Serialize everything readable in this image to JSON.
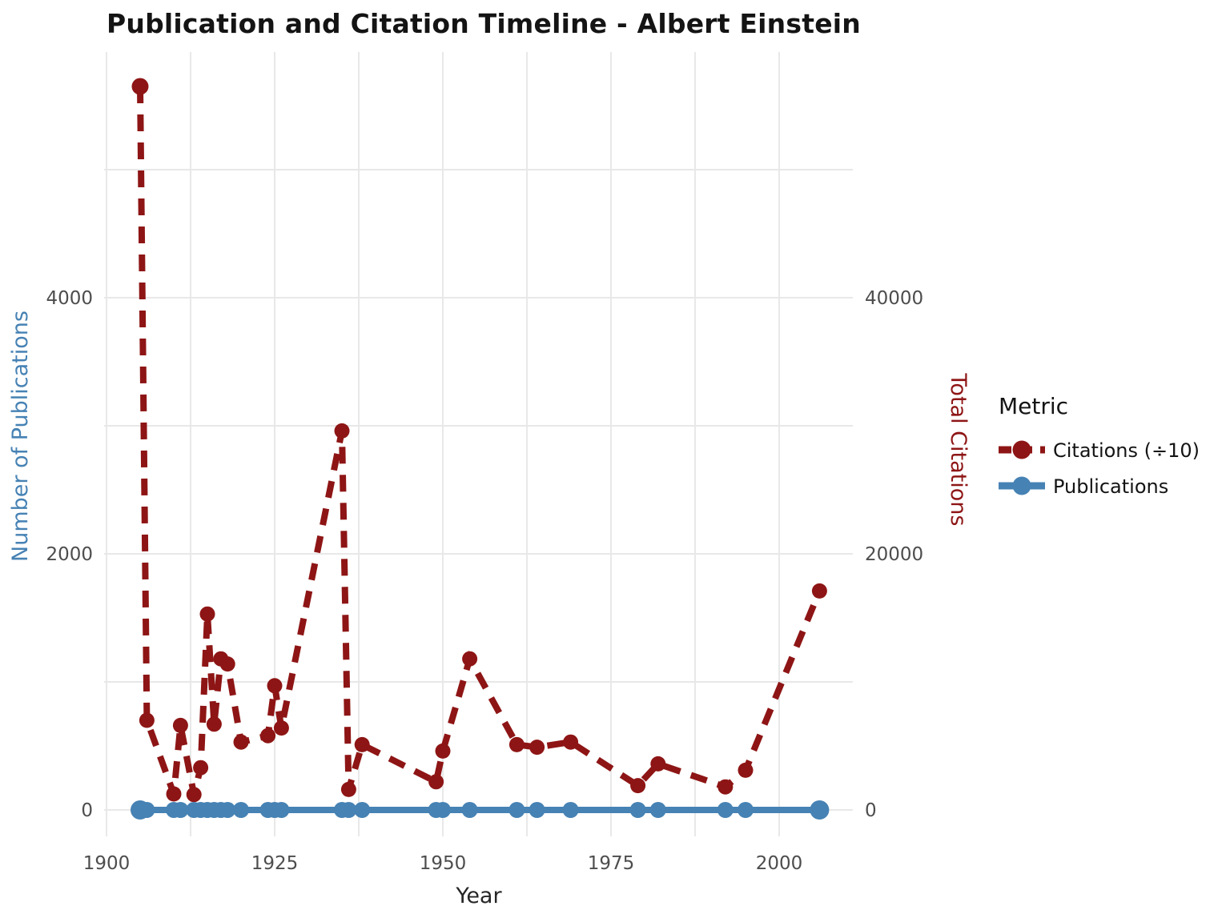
{
  "chart_data": {
    "type": "line",
    "title": "Publication and Citation Timeline - Albert Einstein",
    "xlabel": "Year",
    "ylabel_left": "Number of Publications",
    "ylabel_right": "Total Citations",
    "x_ticks": [
      1900,
      1925,
      1950,
      1975,
      2000
    ],
    "x_minor_gridlines": [
      1912.5,
      1937.5,
      1962.5,
      1987.5
    ],
    "left_ticks": [
      0,
      2000,
      4000
    ],
    "left_minor_gridlines": [
      1000,
      3000,
      5000
    ],
    "right_ticks": [
      0,
      20000,
      40000
    ],
    "x_range": [
      1899.6,
      2011
    ],
    "left_range": [
      0,
      5950
    ],
    "right_range": [
      0,
      59500
    ],
    "grid": "on",
    "legend_position": "right",
    "legend": {
      "title": "Metric",
      "entries": [
        {
          "label": "Citations (÷10)",
          "color": "#8e1515",
          "line_style": "dashed"
        },
        {
          "label": "Publications",
          "color": "#4682b4",
          "line_style": "solid"
        }
      ]
    },
    "x": [
      1905,
      1906,
      1910,
      1911,
      1913,
      1914,
      1915,
      1916,
      1917,
      1918,
      1920,
      1924,
      1925,
      1926,
      1935,
      1936,
      1938,
      1949,
      1950,
      1954,
      1961,
      1964,
      1969,
      1979,
      1982,
      1992,
      1995,
      2006
    ],
    "series": [
      {
        "name": "Citations (÷10)",
        "axis": "right",
        "style": "dashed",
        "color": "#8e1515",
        "values": [
          56500,
          7000,
          1250,
          6600,
          1200,
          3300,
          15300,
          6700,
          11800,
          11400,
          5300,
          5800,
          9700,
          6400,
          29600,
          1600,
          5100,
          2200,
          4600,
          11800,
          5100,
          4900,
          5300,
          1900,
          3600,
          1800,
          3100,
          17100
        ]
      },
      {
        "name": "Publications",
        "axis": "left",
        "style": "solid",
        "color": "#4682b4",
        "values": [
          0,
          0,
          0,
          0,
          0,
          0,
          0,
          0,
          0,
          0,
          0,
          0,
          0,
          0,
          0,
          0,
          0,
          0,
          0,
          0,
          0,
          0,
          0,
          0,
          0,
          0,
          0,
          0
        ]
      }
    ],
    "colors": {
      "citations": "#8e1515",
      "publications": "#4682b4",
      "grid": "#e8e8e8",
      "tick_label": "#4d4d4d",
      "axis_label_left": "#4682b4",
      "axis_label_right": "#8e1515",
      "text": "#141414"
    }
  }
}
